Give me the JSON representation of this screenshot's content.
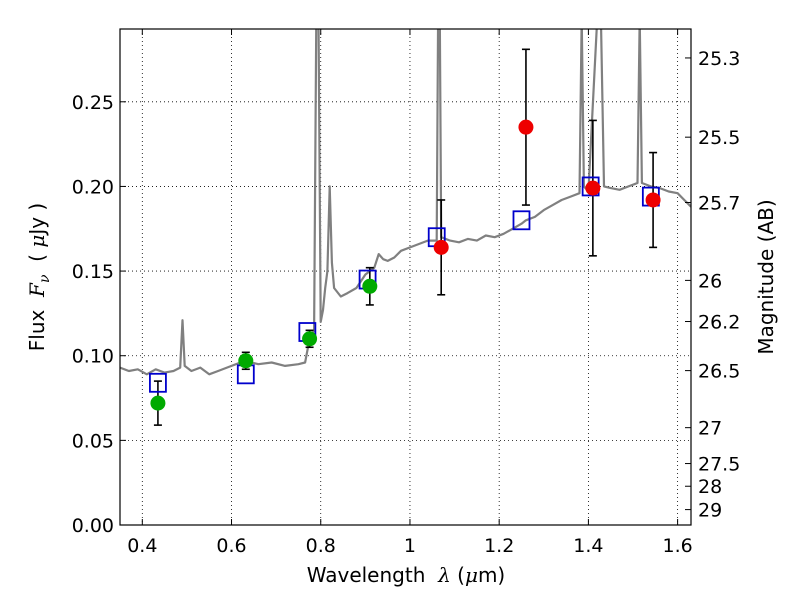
{
  "chart_data": {
    "type": "scatter",
    "xlabel": {
      "prefix": "Wavelength  ",
      "symbol": "λ",
      "mid": " (",
      "mu": "μ",
      "unit": "m)"
    },
    "ylabel": {
      "prefix": "Flux  ",
      "symbol": "F",
      "sub": "ν",
      "mid": "  ( ",
      "mu": "μ",
      "unit": "Jy )"
    },
    "ylabel_right": "Magnitude (AB)",
    "xlim": [
      0.35,
      1.63
    ],
    "ylim": [
      0.0,
      0.293
    ],
    "grid": true,
    "x_ticks": [
      {
        "v": 0.4,
        "label": "0.4"
      },
      {
        "v": 0.6,
        "label": "0.6"
      },
      {
        "v": 0.8,
        "label": "0.8"
      },
      {
        "v": 1.0,
        "label": "1"
      },
      {
        "v": 1.2,
        "label": "1.2"
      },
      {
        "v": 1.4,
        "label": "1.4"
      },
      {
        "v": 1.6,
        "label": "1.6"
      }
    ],
    "y_ticks": [
      {
        "v": 0.0,
        "label": "0.00"
      },
      {
        "v": 0.05,
        "label": "0.05"
      },
      {
        "v": 0.1,
        "label": "0.10"
      },
      {
        "v": 0.15,
        "label": "0.15"
      },
      {
        "v": 0.2,
        "label": "0.20"
      },
      {
        "v": 0.25,
        "label": "0.25"
      }
    ],
    "mag_ticks": [
      {
        "flux": 0.2759,
        "label": "25.3"
      },
      {
        "flux": 0.2291,
        "label": "25.5"
      },
      {
        "flux": 0.1905,
        "label": "25.7"
      },
      {
        "flux": 0.1445,
        "label": "26"
      },
      {
        "flux": 0.1202,
        "label": "26.2"
      },
      {
        "flux": 0.0912,
        "label": "26.5"
      },
      {
        "flux": 0.0575,
        "label": "27"
      },
      {
        "flux": 0.0363,
        "label": "27.5"
      },
      {
        "flux": 0.0229,
        "label": "28"
      },
      {
        "flux": 0.0091,
        "label": "29"
      }
    ],
    "model_spectrum": {
      "color": "#808080",
      "points": [
        [
          0.35,
          0.093
        ],
        [
          0.37,
          0.091
        ],
        [
          0.39,
          0.092
        ],
        [
          0.41,
          0.089
        ],
        [
          0.43,
          0.092
        ],
        [
          0.45,
          0.09
        ],
        [
          0.47,
          0.091
        ],
        [
          0.485,
          0.093
        ],
        [
          0.49,
          0.121
        ],
        [
          0.495,
          0.094
        ],
        [
          0.51,
          0.091
        ],
        [
          0.53,
          0.093
        ],
        [
          0.55,
          0.089
        ],
        [
          0.57,
          0.091
        ],
        [
          0.6,
          0.094
        ],
        [
          0.63,
          0.097
        ],
        [
          0.66,
          0.095
        ],
        [
          0.69,
          0.096
        ],
        [
          0.72,
          0.094
        ],
        [
          0.75,
          0.095
        ],
        [
          0.765,
          0.096
        ],
        [
          0.775,
          0.11
        ],
        [
          0.785,
          0.115
        ],
        [
          0.79,
          0.3
        ],
        [
          0.795,
          0.3
        ],
        [
          0.8,
          0.12
        ],
        [
          0.805,
          0.127
        ],
        [
          0.81,
          0.14
        ],
        [
          0.815,
          0.15
        ],
        [
          0.82,
          0.2
        ],
        [
          0.825,
          0.155
        ],
        [
          0.83,
          0.14
        ],
        [
          0.845,
          0.135
        ],
        [
          0.86,
          0.137
        ],
        [
          0.88,
          0.14
        ],
        [
          0.9,
          0.148
        ],
        [
          0.92,
          0.152
        ],
        [
          0.93,
          0.16
        ],
        [
          0.94,
          0.157
        ],
        [
          0.95,
          0.156
        ],
        [
          0.965,
          0.158
        ],
        [
          0.98,
          0.162
        ],
        [
          1.0,
          0.164
        ],
        [
          1.02,
          0.166
        ],
        [
          1.04,
          0.168
        ],
        [
          1.06,
          0.168
        ],
        [
          1.063,
          0.3
        ],
        [
          1.067,
          0.3
        ],
        [
          1.07,
          0.17
        ],
        [
          1.09,
          0.168
        ],
        [
          1.11,
          0.167
        ],
        [
          1.13,
          0.169
        ],
        [
          1.15,
          0.168
        ],
        [
          1.17,
          0.171
        ],
        [
          1.19,
          0.17
        ],
        [
          1.21,
          0.172
        ],
        [
          1.23,
          0.175
        ],
        [
          1.25,
          0.178
        ],
        [
          1.26,
          0.18
        ],
        [
          1.28,
          0.182
        ],
        [
          1.3,
          0.186
        ],
        [
          1.32,
          0.189
        ],
        [
          1.34,
          0.192
        ],
        [
          1.36,
          0.194
        ],
        [
          1.38,
          0.196
        ],
        [
          1.385,
          0.3
        ],
        [
          1.39,
          0.2
        ],
        [
          1.4,
          0.197
        ],
        [
          1.42,
          0.3
        ],
        [
          1.428,
          0.3
        ],
        [
          1.435,
          0.2
        ],
        [
          1.45,
          0.199
        ],
        [
          1.47,
          0.198
        ],
        [
          1.49,
          0.2
        ],
        [
          1.51,
          0.202
        ],
        [
          1.515,
          0.3
        ],
        [
          1.52,
          0.202
        ],
        [
          1.54,
          0.2
        ],
        [
          1.56,
          0.199
        ],
        [
          1.58,
          0.197
        ],
        [
          1.6,
          0.196
        ],
        [
          1.615,
          0.192
        ],
        [
          1.63,
          0.188
        ]
      ]
    },
    "model_photometry": {
      "color": "#0000cc",
      "points": [
        {
          "x": 0.435,
          "y": 0.084
        },
        {
          "x": 0.632,
          "y": 0.089
        },
        {
          "x": 0.77,
          "y": 0.114
        },
        {
          "x": 0.905,
          "y": 0.145
        },
        {
          "x": 1.06,
          "y": 0.17
        },
        {
          "x": 1.25,
          "y": 0.18
        },
        {
          "x": 1.405,
          "y": 0.2
        },
        {
          "x": 1.54,
          "y": 0.194
        }
      ]
    },
    "observed_green": {
      "color": "#00aa00",
      "points": [
        {
          "x": 0.435,
          "y": 0.072,
          "err": 0.013
        },
        {
          "x": 0.632,
          "y": 0.097,
          "err": 0.005
        },
        {
          "x": 0.775,
          "y": 0.11,
          "err": 0.005
        },
        {
          "x": 0.91,
          "y": 0.141,
          "err": 0.011
        }
      ]
    },
    "observed_red": {
      "color": "#ee0000",
      "points": [
        {
          "x": 1.07,
          "y": 0.164,
          "err": 0.028
        },
        {
          "x": 1.26,
          "y": 0.235,
          "err": 0.046
        },
        {
          "x": 1.41,
          "y": 0.199,
          "err": 0.04
        },
        {
          "x": 1.545,
          "y": 0.192,
          "err": 0.028
        }
      ]
    }
  }
}
